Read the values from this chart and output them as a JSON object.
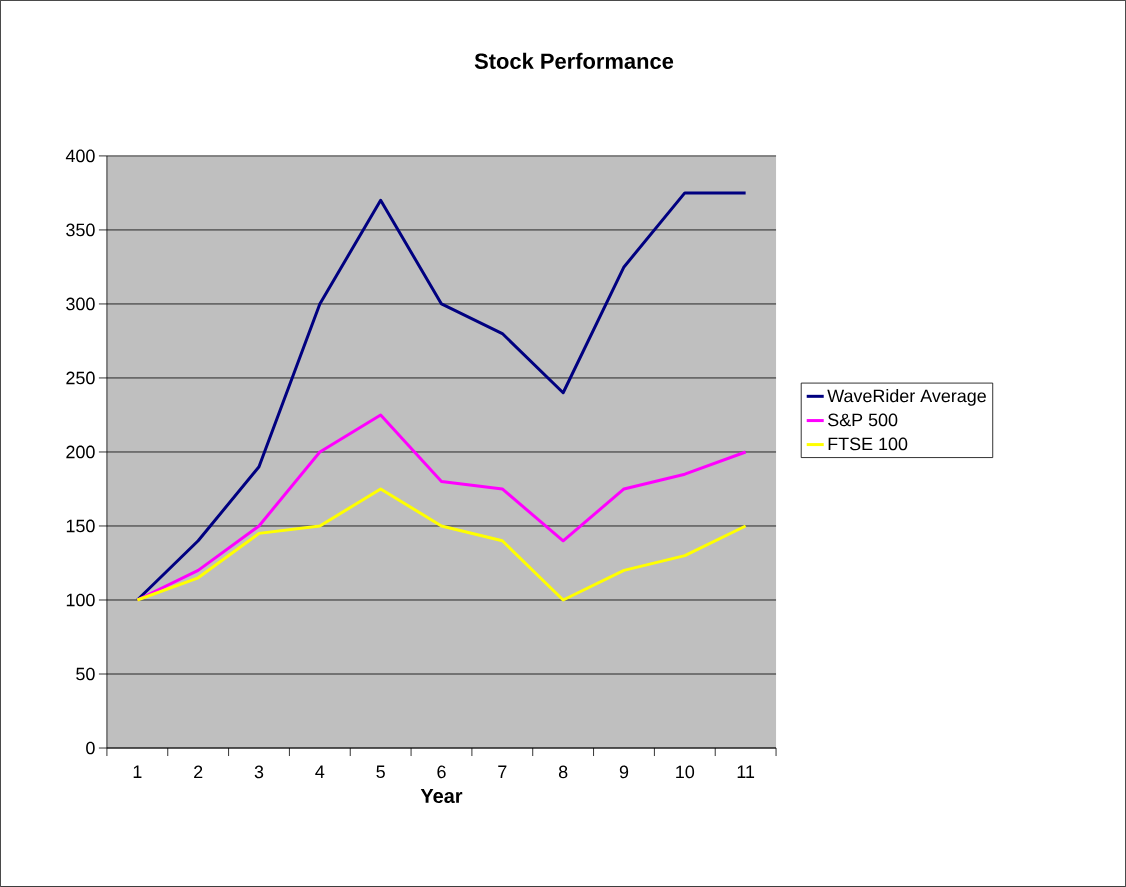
{
  "chart_data": {
    "type": "line",
    "title": "Stock Performance",
    "xlabel": "Year",
    "categories": [
      "1",
      "2",
      "3",
      "4",
      "5",
      "6",
      "7",
      "8",
      "9",
      "10",
      "11"
    ],
    "series": [
      {
        "name": "WaveRider Average",
        "color": "#000080",
        "values": [
          100,
          140,
          190,
          300,
          370,
          300,
          280,
          240,
          325,
          375,
          375
        ]
      },
      {
        "name": "S&P 500",
        "color": "#ff00ff",
        "values": [
          100,
          120,
          150,
          200,
          225,
          180,
          175,
          140,
          175,
          185,
          200
        ]
      },
      {
        "name": "FTSE 100",
        "color": "#ffff00",
        "values": [
          100,
          115,
          145,
          150,
          175,
          150,
          140,
          100,
          120,
          130,
          150
        ]
      }
    ],
    "ylim": [
      0,
      400
    ],
    "yticks": [
      0,
      50,
      100,
      150,
      200,
      250,
      300,
      350,
      400
    ],
    "grid": "y",
    "legend": "right",
    "line_style": "solid",
    "marker": "none"
  }
}
